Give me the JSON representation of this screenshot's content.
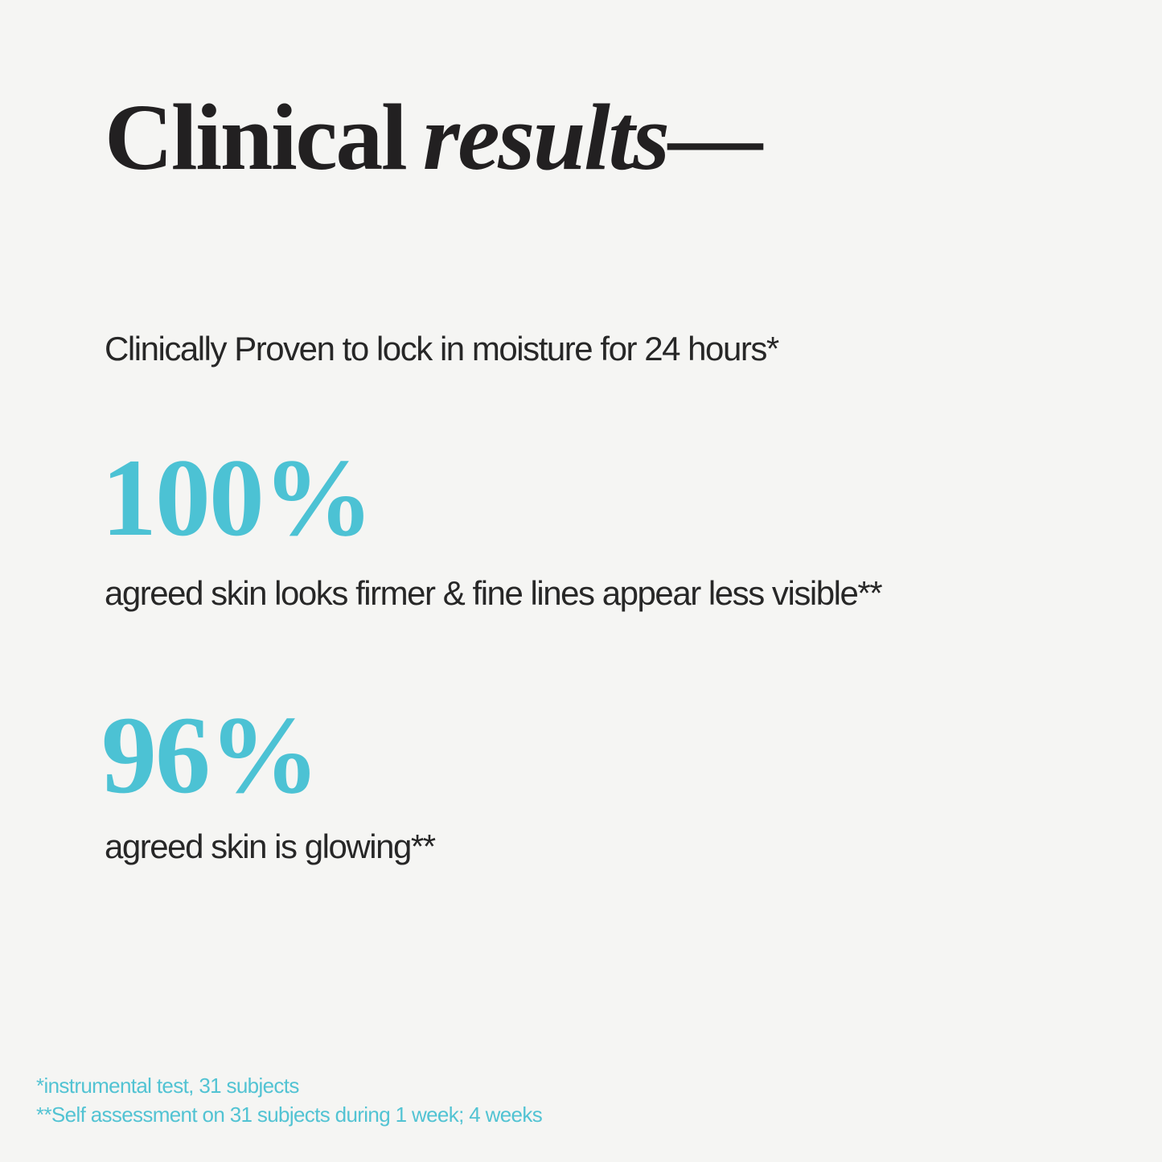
{
  "page": {
    "background_color": "#f5f5f3",
    "text_color": "#272727",
    "accent_color": "#4cc2d4"
  },
  "header": {
    "title_regular": "Clinical",
    "title_italic": "results",
    "title_dash": "—"
  },
  "intro": {
    "text": "Clinically Proven to lock in moisture for 24 hours*"
  },
  "stats": [
    {
      "value": "100%",
      "caption": "agreed skin looks firmer & fine lines appear less visible**"
    },
    {
      "value": "96%",
      "caption": "agreed skin is glowing**"
    }
  ],
  "footnotes": [
    "*instrumental test, 31 subjects",
    "**Self assessment on 31 subjects during 1 week; 4 weeks"
  ]
}
